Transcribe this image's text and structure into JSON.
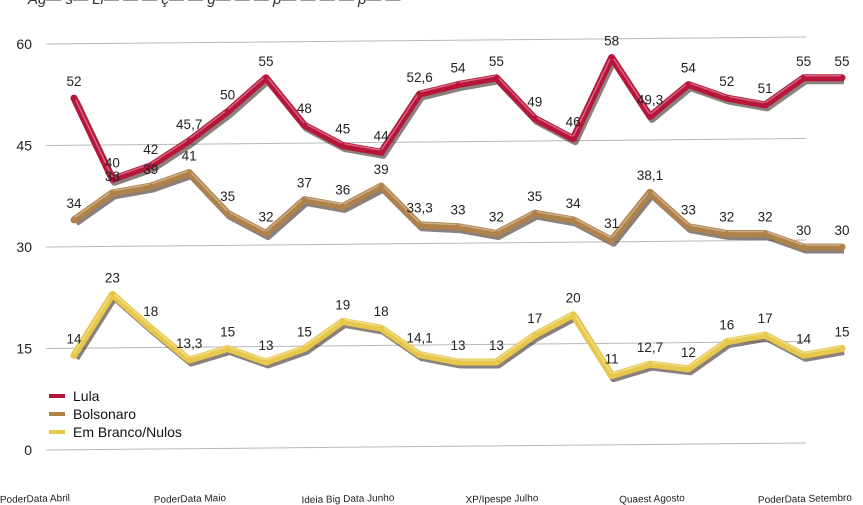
{
  "chart_data": {
    "type": "line",
    "title": "Ag— s— Li— — — ç— — g— — — p— — — — p— —",
    "y_ticks": [
      0,
      15,
      30,
      45,
      60
    ],
    "ylim": [
      0,
      60
    ],
    "x_category_labels": [
      "PoderData Abril",
      "PoderData Maio",
      "Ideia Big Data Junho",
      "XP/Ipespe Julho",
      "Quaest Agosto",
      "PoderData Setembro"
    ],
    "grid": true,
    "legend_position": "bottom-left",
    "series": [
      {
        "name": "Lula",
        "color": "#b8153a",
        "values": [
          52,
          40,
          42,
          45.7,
          50,
          55,
          48,
          45,
          44,
          52.6,
          54,
          55,
          49,
          46,
          58,
          49.3,
          54,
          52,
          51,
          55,
          55
        ],
        "labels": [
          "52",
          "40",
          "42",
          "45,7",
          "50",
          "55",
          "48",
          "45",
          "44",
          "52,6",
          "54",
          "55",
          "49",
          "46",
          "58",
          "49,3",
          "54",
          "52",
          "51",
          "55",
          "55"
        ]
      },
      {
        "name": "Bolsonaro",
        "color": "#b0824a",
        "values": [
          34,
          38,
          39,
          41,
          35,
          32,
          37,
          36,
          39,
          33.3,
          33,
          32,
          35,
          34,
          31,
          38.1,
          33,
          32,
          32,
          30,
          30
        ],
        "labels": [
          "34",
          "38",
          "39",
          "41",
          "35",
          "32",
          "37",
          "36",
          "39",
          "33,3",
          "33",
          "32",
          "35",
          "34",
          "31",
          "38,1",
          "33",
          "32",
          "32",
          "30",
          "30"
        ]
      },
      {
        "name": "Em Branco/Nulos",
        "color": "#e8c84a",
        "values": [
          14,
          23,
          18,
          13.3,
          15,
          13,
          15,
          19,
          18,
          14.1,
          13,
          13,
          17,
          20,
          11,
          12.7,
          12,
          16,
          17,
          14,
          15
        ],
        "labels": [
          "14",
          "23",
          "18",
          "13,3",
          "15",
          "13",
          "15",
          "19",
          "18",
          "14,1",
          "13",
          "13",
          "17",
          "20",
          "11",
          "12,7",
          "12",
          "16",
          "17",
          "14",
          "15"
        ]
      }
    ]
  }
}
